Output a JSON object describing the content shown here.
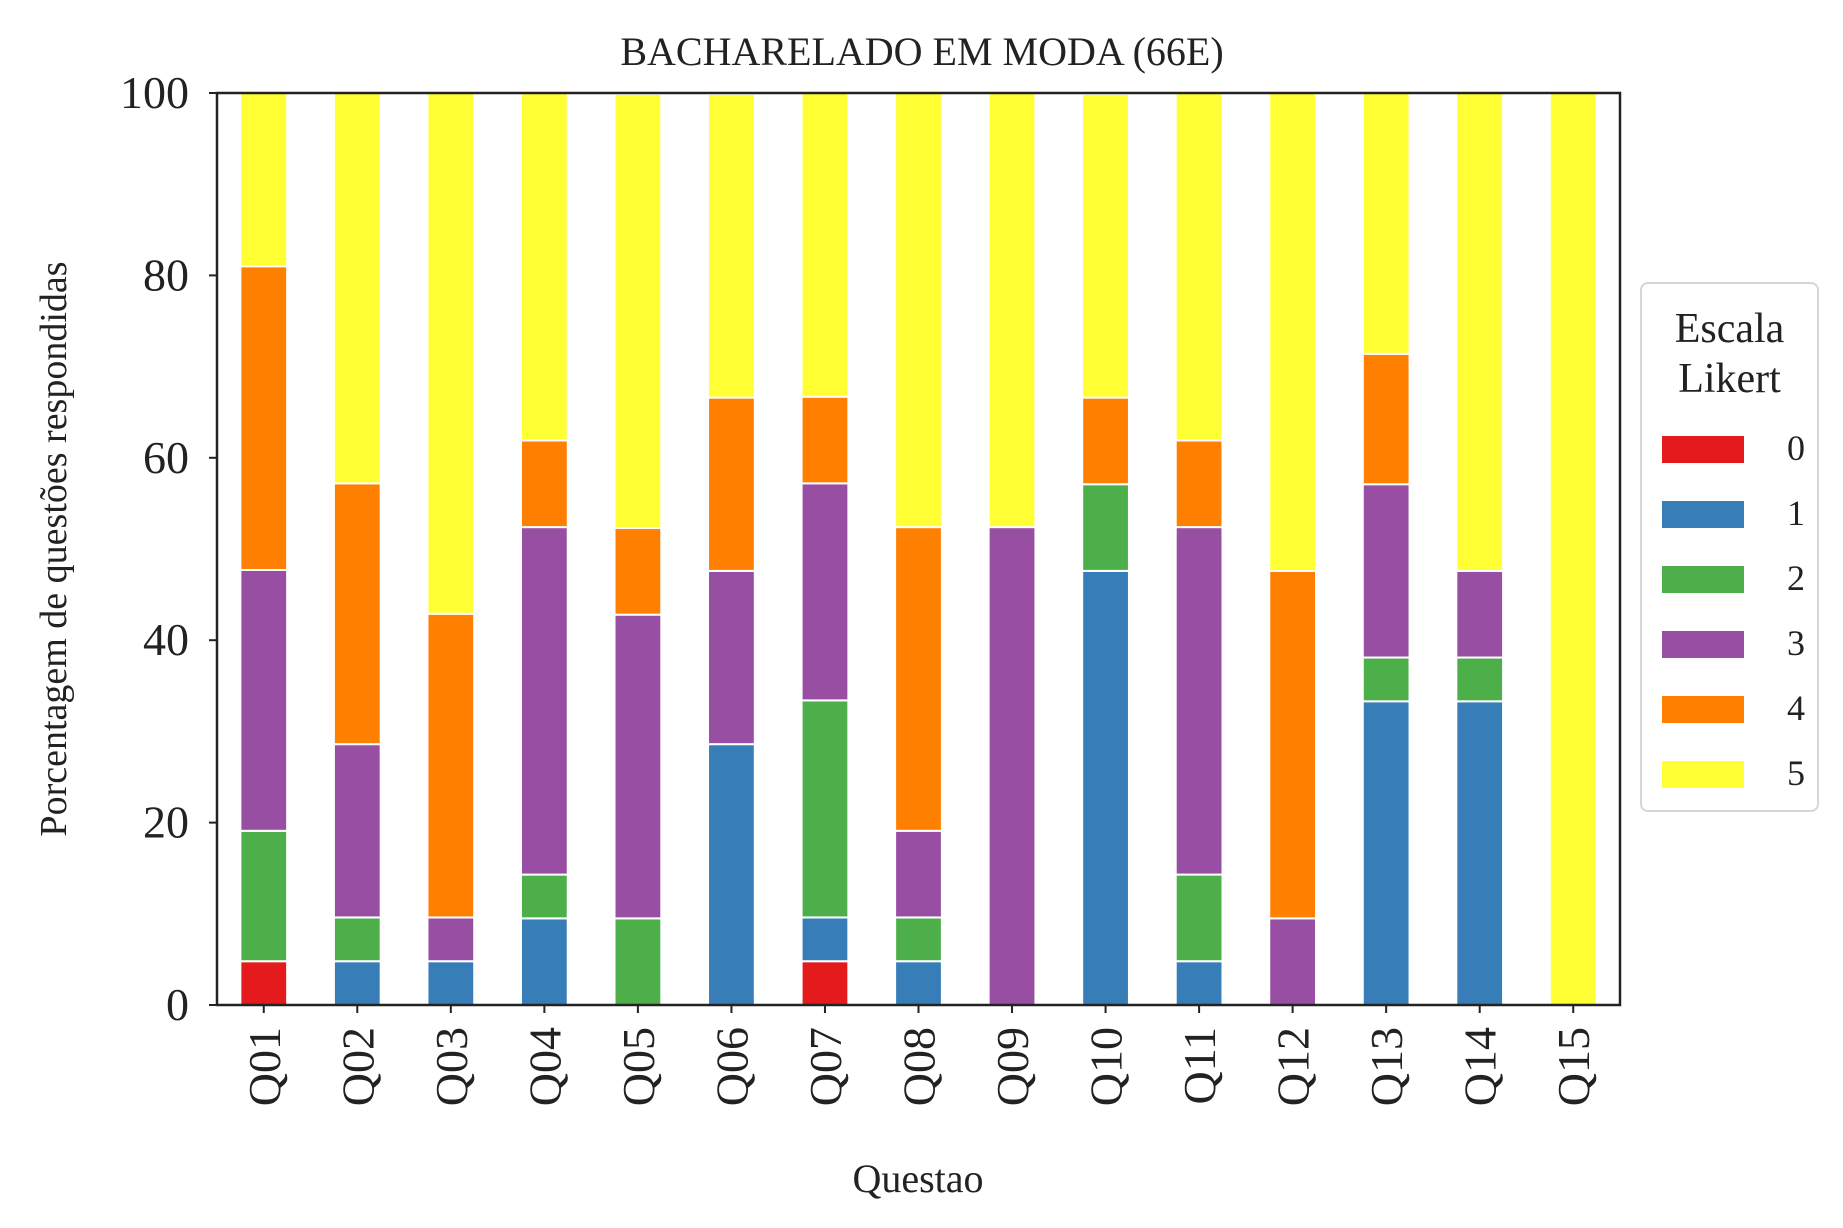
{
  "chart_data": {
    "type": "bar",
    "stacked": true,
    "title": "BACHARELADO EM MODA (66E)",
    "xlabel": "Questao",
    "ylabel": "Porcentagem de questões respondidas",
    "ylim": [
      0,
      100
    ],
    "yticks": [
      "0",
      "20",
      "40",
      "60",
      "80",
      "100"
    ],
    "grid": false,
    "legend_placement": "right",
    "categories": [
      "Q01",
      "Q02",
      "Q03",
      "Q04",
      "Q05",
      "Q06",
      "Q07",
      "Q08",
      "Q09",
      "Q10",
      "Q11",
      "Q12",
      "Q13",
      "Q14",
      "Q15"
    ],
    "series": [
      {
        "name": "0",
        "color": "#e41a1c",
        "values": [
          4.8,
          0,
          0,
          0,
          0,
          0,
          4.8,
          0,
          0,
          0,
          0,
          0,
          0,
          0,
          0
        ]
      },
      {
        "name": "1",
        "color": "#377eb8",
        "values": [
          0,
          4.8,
          4.8,
          9.5,
          0,
          28.6,
          4.8,
          4.8,
          0,
          47.6,
          4.8,
          0,
          33.3,
          33.3,
          0
        ]
      },
      {
        "name": "2",
        "color": "#4daf4a",
        "values": [
          14.3,
          4.8,
          0,
          4.8,
          9.5,
          0,
          23.8,
          4.8,
          0,
          9.5,
          9.5,
          0,
          4.8,
          4.8,
          0
        ]
      },
      {
        "name": "3",
        "color": "#984ea3",
        "values": [
          28.6,
          19.0,
          4.8,
          38.1,
          33.3,
          19.0,
          23.8,
          9.5,
          52.4,
          0,
          38.1,
          9.5,
          19.0,
          9.5,
          0
        ]
      },
      {
        "name": "4",
        "color": "#ff7f00",
        "values": [
          33.3,
          28.6,
          33.3,
          9.5,
          9.5,
          19.0,
          9.5,
          33.3,
          0,
          9.5,
          9.5,
          38.1,
          14.3,
          0,
          0
        ]
      },
      {
        "name": "5",
        "color": "#ffff33",
        "values": [
          19.0,
          42.9,
          57.1,
          38.1,
          47.6,
          33.3,
          33.3,
          47.6,
          47.6,
          33.3,
          38.1,
          52.4,
          28.6,
          52.4,
          100
        ]
      }
    ]
  },
  "legend": {
    "title_line1": "Escala",
    "title_line2": "Likert"
  }
}
